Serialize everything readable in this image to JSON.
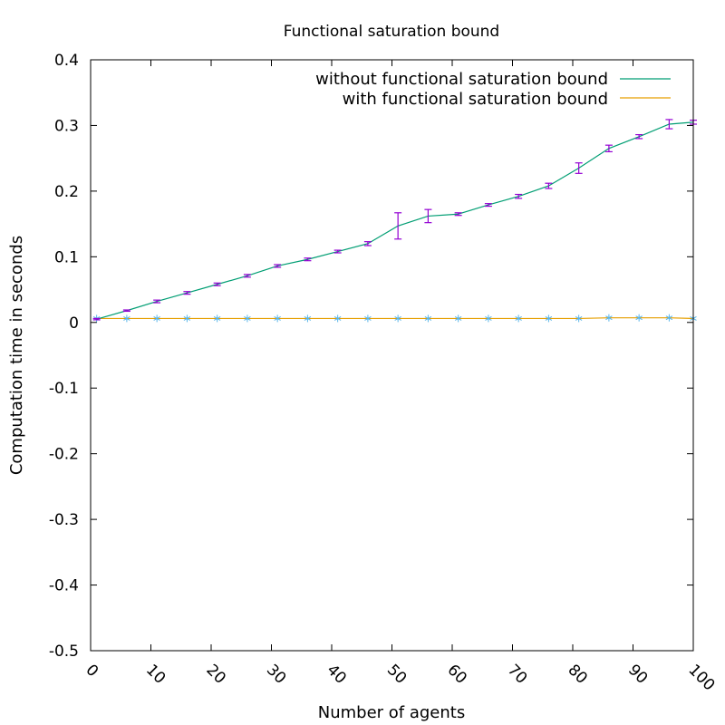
{
  "chart_data": {
    "type": "line",
    "title": "Functional saturation bound",
    "xlabel": "Number of agents",
    "ylabel": "Computation time in seconds",
    "xlim": [
      0,
      100
    ],
    "ylim": [
      -0.5,
      0.4
    ],
    "xticks": [
      "0",
      "10",
      "20",
      "30",
      "40",
      "50",
      "60",
      "70",
      "80",
      "90",
      "100"
    ],
    "yticks": [
      "0.4",
      "0.3",
      "0.2",
      "0.1",
      "0",
      "-0.1",
      "-0.2",
      "-0.3",
      "-0.4",
      "-0.5"
    ],
    "legend_position": "top-right",
    "grid": false,
    "series": [
      {
        "name": "without functional saturation bound",
        "color": "#009e73",
        "errorbar_color": "#9400d3",
        "points": [
          {
            "x": 1,
            "y": 0.005,
            "err": 0.001
          },
          {
            "x": 6,
            "y": 0.018,
            "err": 0.001
          },
          {
            "x": 11,
            "y": 0.032,
            "err": 0.002
          },
          {
            "x": 16,
            "y": 0.045,
            "err": 0.002
          },
          {
            "x": 21,
            "y": 0.058,
            "err": 0.002
          },
          {
            "x": 26,
            "y": 0.071,
            "err": 0.002
          },
          {
            "x": 31,
            "y": 0.086,
            "err": 0.002
          },
          {
            "x": 36,
            "y": 0.096,
            "err": 0.002
          },
          {
            "x": 41,
            "y": 0.108,
            "err": 0.002
          },
          {
            "x": 46,
            "y": 0.12,
            "err": 0.003
          },
          {
            "x": 51,
            "y": 0.147,
            "err": 0.02
          },
          {
            "x": 56,
            "y": 0.162,
            "err": 0.01
          },
          {
            "x": 61,
            "y": 0.165,
            "err": 0.002
          },
          {
            "x": 66,
            "y": 0.179,
            "err": 0.002
          },
          {
            "x": 71,
            "y": 0.192,
            "err": 0.003
          },
          {
            "x": 76,
            "y": 0.208,
            "err": 0.004
          },
          {
            "x": 81,
            "y": 0.235,
            "err": 0.008
          },
          {
            "x": 86,
            "y": 0.265,
            "err": 0.005
          },
          {
            "x": 91,
            "y": 0.283,
            "err": 0.003
          },
          {
            "x": 96,
            "y": 0.302,
            "err": 0.007
          },
          {
            "x": 100,
            "y": 0.305,
            "err": 0.003
          }
        ]
      },
      {
        "name": "with functional saturation bound",
        "color": "#e69f00",
        "marker_color": "#56b4e9",
        "points": [
          {
            "x": 1,
            "y": 0.006
          },
          {
            "x": 6,
            "y": 0.006
          },
          {
            "x": 11,
            "y": 0.006
          },
          {
            "x": 16,
            "y": 0.006
          },
          {
            "x": 21,
            "y": 0.006
          },
          {
            "x": 26,
            "y": 0.006
          },
          {
            "x": 31,
            "y": 0.006
          },
          {
            "x": 36,
            "y": 0.006
          },
          {
            "x": 41,
            "y": 0.006
          },
          {
            "x": 46,
            "y": 0.006
          },
          {
            "x": 51,
            "y": 0.006
          },
          {
            "x": 56,
            "y": 0.006
          },
          {
            "x": 61,
            "y": 0.006
          },
          {
            "x": 66,
            "y": 0.006
          },
          {
            "x": 71,
            "y": 0.006
          },
          {
            "x": 76,
            "y": 0.006
          },
          {
            "x": 81,
            "y": 0.006
          },
          {
            "x": 86,
            "y": 0.007
          },
          {
            "x": 91,
            "y": 0.007
          },
          {
            "x": 96,
            "y": 0.007
          },
          {
            "x": 100,
            "y": 0.006
          }
        ]
      }
    ]
  }
}
